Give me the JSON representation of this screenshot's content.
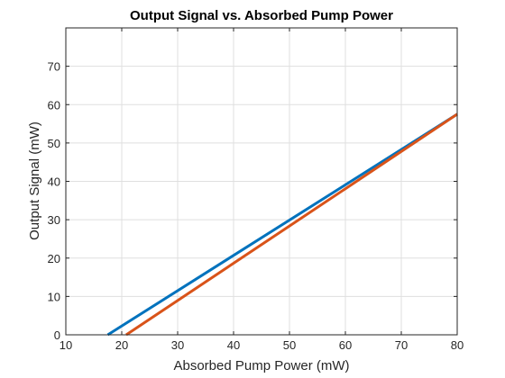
{
  "chart_data": {
    "type": "line",
    "title": "Output Signal vs. Absorbed Pump Power",
    "xlabel": "Absorbed Pump Power (mW)",
    "ylabel": "Output Signal (mW)",
    "xlim": [
      10,
      80
    ],
    "ylim": [
      0,
      80
    ],
    "xticks": [
      10,
      20,
      30,
      40,
      50,
      60,
      70,
      80
    ],
    "yticks": [
      0,
      10,
      20,
      30,
      40,
      50,
      60,
      70
    ],
    "grid": true,
    "series": [
      {
        "color": "#0072bd",
        "x": [
          17.5,
          80
        ],
        "y": [
          0,
          57.5
        ]
      },
      {
        "color": "#d95319",
        "x": [
          20.8,
          80
        ],
        "y": [
          0,
          57.5
        ]
      }
    ]
  }
}
